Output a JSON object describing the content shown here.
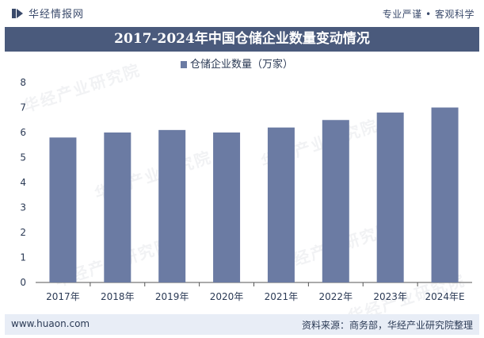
{
  "header": {
    "brand_name": "华经情报网",
    "slogan": "专业严谨 • 客观科学"
  },
  "watermark_text": "华经产业研究院",
  "watermark_url": "www.huaon.com",
  "chart_data": {
    "type": "bar",
    "title": "2017-2024年中国仓储企业数量变动情况",
    "categories": [
      "2017年",
      "2018年",
      "2019年",
      "2020年",
      "2021年",
      "2022年",
      "2023年",
      "2024年E"
    ],
    "series": [
      {
        "name": "仓储企业数量（万家）",
        "values": [
          5.8,
          6.0,
          6.1,
          6.0,
          6.2,
          6.5,
          6.8,
          7.0
        ]
      }
    ],
    "ylim": [
      0,
      8
    ],
    "yticks": [
      0,
      1,
      2,
      3,
      4,
      5,
      6,
      7,
      8
    ],
    "xlabel": "",
    "ylabel": "",
    "legend_position": "top-center",
    "bar_color": "#6b7ba3"
  },
  "footer": {
    "url": "www.huaon.com",
    "source": "资料来源：商务部，华经产业研究院整理"
  }
}
